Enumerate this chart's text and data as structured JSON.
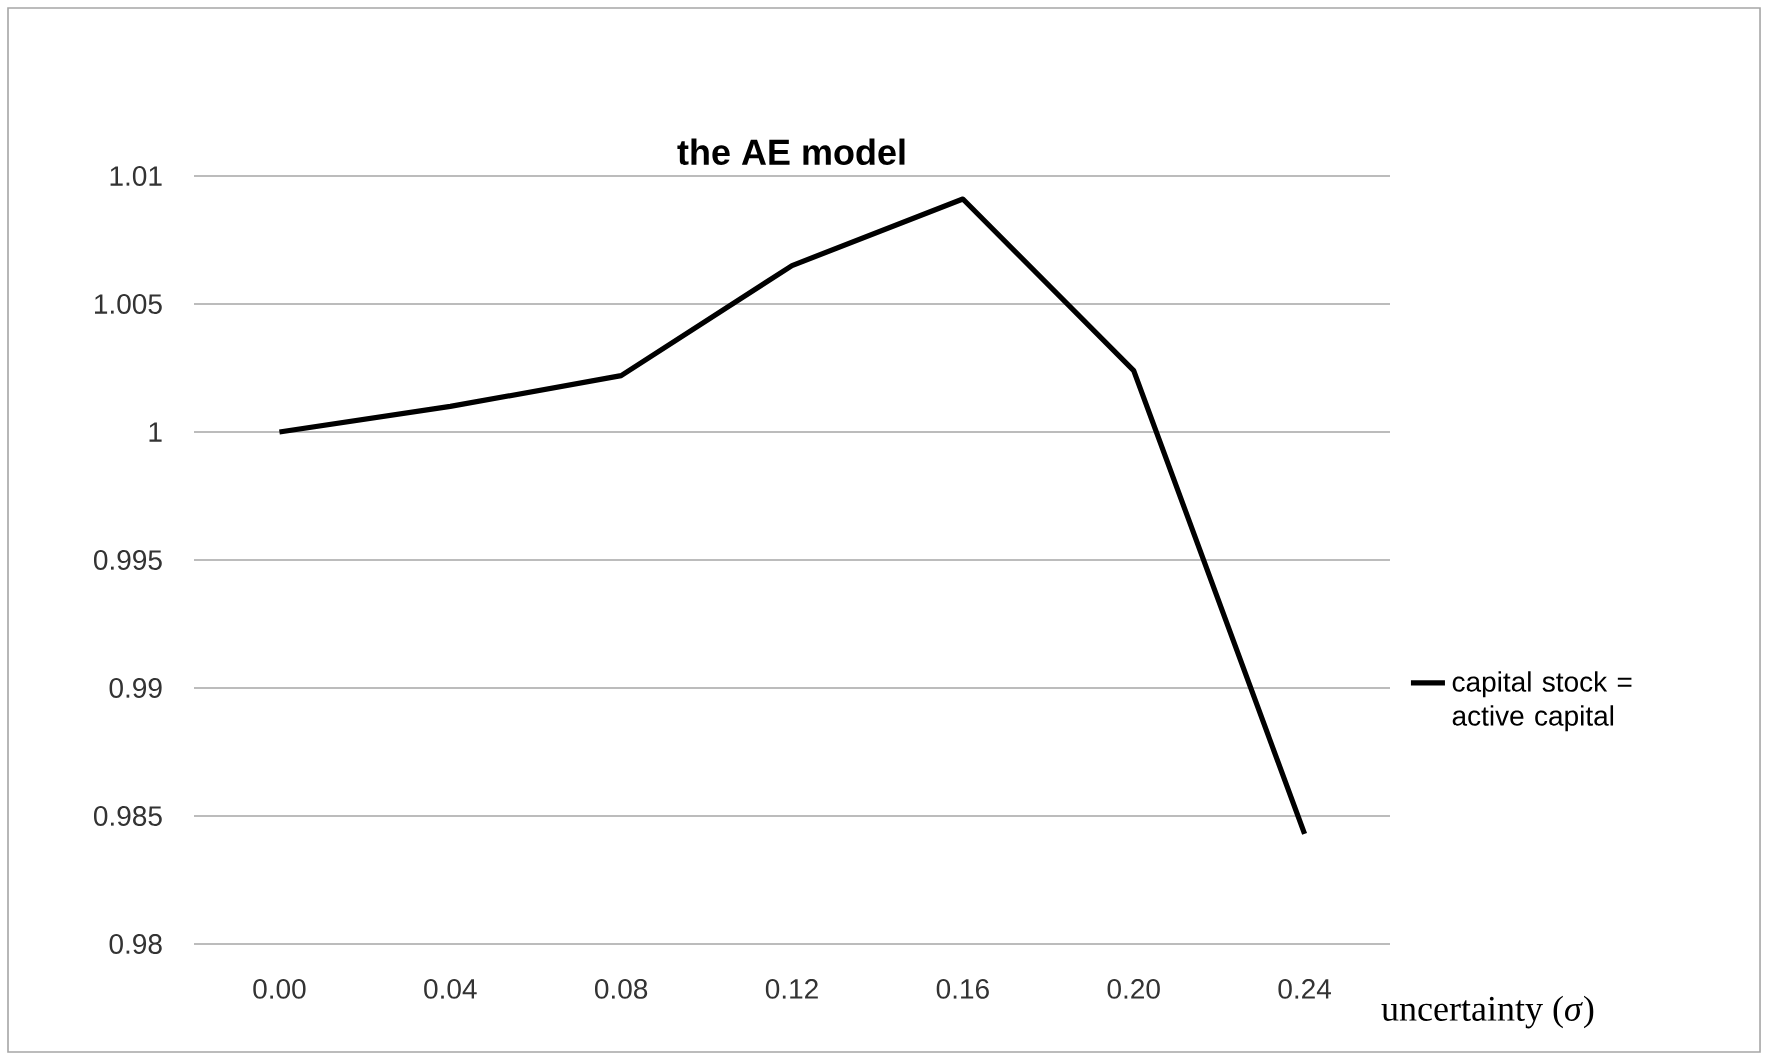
{
  "chart_data": {
    "type": "line",
    "title": "the AE model",
    "xlabel": "uncertainty (*σ*)",
    "categories": [
      "0.00",
      "0.04",
      "0.08",
      "0.12",
      "0.16",
      "0.20",
      "0.24"
    ],
    "series": [
      {
        "name": "capital stock = active capital",
        "color": "#000000",
        "values": [
          1.0,
          1.001,
          1.0022,
          1.0065,
          1.0091,
          1.0024,
          0.9843
        ]
      }
    ],
    "ylim": [
      0.98,
      1.01
    ],
    "yticks": [
      0.98,
      0.985,
      0.99,
      0.995,
      1,
      1.005,
      1.01
    ],
    "grid": "y",
    "legend": "right",
    "marker": "none",
    "line_style": "solid"
  }
}
